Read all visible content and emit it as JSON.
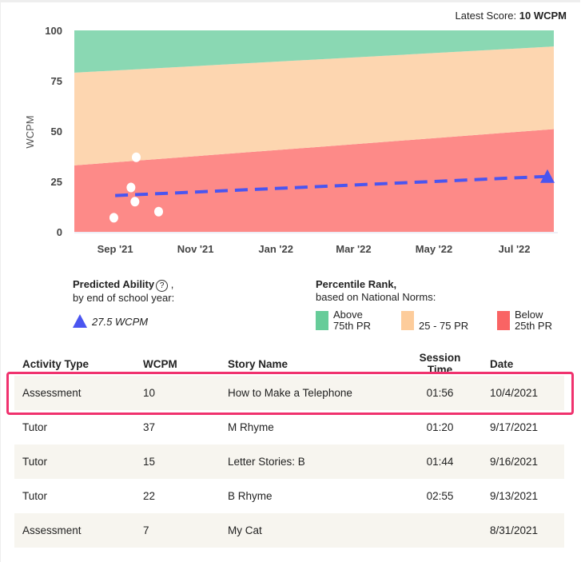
{
  "header": {
    "latest_label": "Latest Score:",
    "latest_value": "10 WCPM"
  },
  "chart_data": {
    "type": "scatter",
    "ylabel": "WCPM",
    "ylim": [
      0,
      100
    ],
    "yticks": [
      0,
      25,
      50,
      75,
      100
    ],
    "xlim": [
      "2021-08-01",
      "2022-07-31"
    ],
    "xticks": [
      {
        "date": "2021-09-01",
        "label": "Sep '21"
      },
      {
        "date": "2021-11-01",
        "label": "Nov '21"
      },
      {
        "date": "2022-01-01",
        "label": "Jan '22"
      },
      {
        "date": "2022-03-01",
        "label": "Mar '22"
      },
      {
        "date": "2022-05-01",
        "label": "May '22"
      },
      {
        "date": "2022-07-01",
        "label": "Jul '22"
      }
    ],
    "bands": [
      {
        "name": "Below 25th PR",
        "color": "#fd8a88",
        "lower": [
          0,
          0
        ],
        "upper": [
          33,
          51
        ]
      },
      {
        "name": "25 - 75 PR",
        "color": "#fdd6b0",
        "lower": [
          33,
          51
        ],
        "upper": [
          79,
          92
        ]
      },
      {
        "name": "Above 75th PR",
        "color": "#8ad8b3",
        "lower": [
          79,
          92
        ],
        "upper": [
          100,
          100
        ]
      }
    ],
    "points": [
      {
        "x": "2021-08-31",
        "y": 7
      },
      {
        "x": "2021-09-13",
        "y": 22
      },
      {
        "x": "2021-09-16",
        "y": 15
      },
      {
        "x": "2021-09-17",
        "y": 37
      },
      {
        "x": "2021-10-04",
        "y": 10
      }
    ],
    "trend": {
      "color": "#4a55f0",
      "start": {
        "x": "2021-09-01",
        "y": 18
      },
      "end": {
        "x": "2022-07-31",
        "y": 27.5
      }
    }
  },
  "legend": {
    "predicted_title": "Predicted Ability",
    "help_icon": "?",
    "predicted_comma": ",",
    "predicted_sub": "by end of school year:",
    "predicted_value": "27.5 WCPM",
    "pr_title": "Percentile Rank,",
    "pr_sub": "based on National Norms:",
    "items": [
      {
        "l1": "Above",
        "l2": "75th PR",
        "color": "#66cc99"
      },
      {
        "l1": "",
        "l2": "25 - 75 PR",
        "color": "#fdcc9b"
      },
      {
        "l1": "Below",
        "l2": "25th PR",
        "color": "#f96464"
      }
    ]
  },
  "table": {
    "headers": [
      "Activity Type",
      "WCPM",
      "Story Name",
      "Session Time",
      "Date"
    ],
    "rows": [
      [
        "Assessment",
        "10",
        "How to Make a Telephone",
        "01:56",
        "10/4/2021"
      ],
      [
        "Tutor",
        "37",
        "M Rhyme",
        "01:20",
        "9/17/2021"
      ],
      [
        "Tutor",
        "15",
        "Letter Stories: B",
        "01:44",
        "9/16/2021"
      ],
      [
        "Tutor",
        "22",
        "B Rhyme",
        "02:55",
        "9/13/2021"
      ],
      [
        "Assessment",
        "7",
        "My Cat",
        "",
        "8/31/2021"
      ]
    ]
  }
}
